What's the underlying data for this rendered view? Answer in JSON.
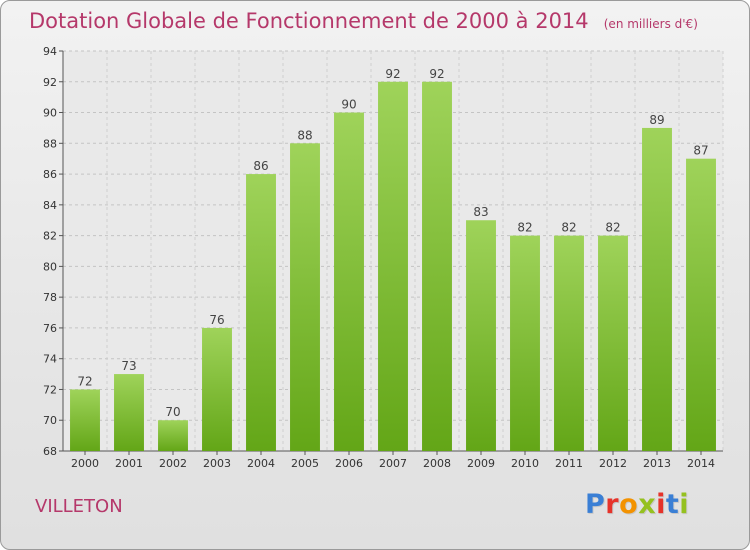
{
  "chart_data": {
    "type": "bar",
    "title": "Dotation Globale de Fonctionnement de 2000 à 2014",
    "subtitle": "(en milliers d'€)",
    "categories": [
      "2000",
      "2001",
      "2002",
      "2003",
      "2004",
      "2005",
      "2006",
      "2007",
      "2008",
      "2009",
      "2010",
      "2011",
      "2012",
      "2013",
      "2014"
    ],
    "values": [
      72,
      73,
      70,
      76,
      86,
      88,
      90,
      92,
      92,
      83,
      82,
      82,
      82,
      89,
      87
    ],
    "ylim": [
      68,
      94
    ],
    "yticks": [
      68,
      70,
      72,
      74,
      76,
      78,
      80,
      82,
      84,
      86,
      88,
      90,
      92,
      94
    ],
    "grid": true,
    "bar_color": "#8cc63f",
    "label_color": "#444444"
  },
  "footer": {
    "commune": "VILLETON",
    "brand": "Proxiti"
  },
  "colors": {
    "title": "#b5386a",
    "brand_letters": [
      "#3a7fd5",
      "#e6332a",
      "#f39200",
      "#95c11f",
      "#e6332a",
      "#3a7fd5",
      "#95c11f"
    ]
  }
}
